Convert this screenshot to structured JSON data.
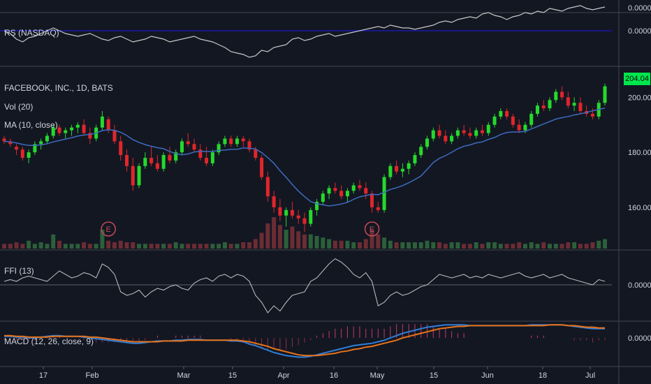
{
  "colors": {
    "background": "#131722",
    "grid": "#2a2e39",
    "up": "#26d92c",
    "down": "#e0262b",
    "ma": "#3d6bbf",
    "rs_line": "#c8c8c8",
    "rs_baseline": "#1a1aa8",
    "macd_line": "#2f7fd8",
    "signal_line": "#e8731a",
    "earnings": "#c24a5a",
    "price_tag": "#00e64d"
  },
  "panels": {
    "rs": {
      "label": "RS (NASDAQ)",
      "axis_labels": [
        "0.0000",
        "0.0000"
      ]
    },
    "price": {
      "title": "FACEBOOK, INC., 1D, BATS",
      "vol_label": "Vol (20)",
      "ma_label": "MA (10, close)",
      "axis_labels": [
        "200.00",
        "180.00",
        "160.00"
      ],
      "current_price": "204.04",
      "earnings_marker": "E"
    },
    "ffi": {
      "label": "FFI (13)",
      "axis_label": "0.0000"
    },
    "macd": {
      "label": "MACD (12, 26, close, 9)",
      "axis_label": "0.0000"
    }
  },
  "x_axis": {
    "labels": [
      "17",
      "Feb",
      "Mar",
      "15",
      "Apr",
      "16",
      "May",
      "15",
      "Jun",
      "18",
      "Jul"
    ]
  },
  "chart_data": {
    "type": "candlestick",
    "title": "FACEBOOK, INC., 1D, BATS",
    "y_axis": {
      "ylim": [
        145,
        210
      ],
      "ticks": [
        160,
        180,
        200
      ]
    },
    "x_axis_labels": [
      "17",
      "Feb",
      "Mar",
      "15",
      "Apr",
      "16",
      "May",
      "15",
      "Jun",
      "18",
      "Jul"
    ],
    "ohlc": [
      [
        185,
        186,
        183,
        184
      ],
      [
        184,
        185,
        182,
        183
      ],
      [
        182,
        183,
        179,
        181
      ],
      [
        181,
        182,
        177,
        178
      ],
      [
        178,
        181,
        176,
        180
      ],
      [
        180,
        184,
        179,
        183
      ],
      [
        183,
        185,
        181,
        184
      ],
      [
        184,
        187,
        183,
        186
      ],
      [
        186,
        190,
        185,
        189
      ],
      [
        189,
        190,
        186,
        187
      ],
      [
        187,
        189,
        185,
        188
      ],
      [
        188,
        190,
        186,
        189
      ],
      [
        189,
        191,
        187,
        190
      ],
      [
        190,
        192,
        186,
        187
      ],
      [
        187,
        189,
        183,
        185
      ],
      [
        185,
        190,
        184,
        189
      ],
      [
        189,
        195,
        188,
        193
      ],
      [
        192,
        193,
        187,
        188
      ],
      [
        188,
        190,
        183,
        184
      ],
      [
        184,
        186,
        177,
        179
      ],
      [
        179,
        181,
        173,
        175
      ],
      [
        175,
        178,
        166,
        168
      ],
      [
        168,
        176,
        167,
        175
      ],
      [
        175,
        180,
        174,
        178
      ],
      [
        178,
        182,
        175,
        176
      ],
      [
        176,
        179,
        173,
        174
      ],
      [
        174,
        180,
        173,
        179
      ],
      [
        179,
        182,
        176,
        177
      ],
      [
        177,
        181,
        176,
        180
      ],
      [
        180,
        185,
        179,
        184
      ],
      [
        184,
        187,
        182,
        183
      ],
      [
        183,
        185,
        180,
        181
      ],
      [
        181,
        183,
        177,
        178
      ],
      [
        178,
        182,
        175,
        176
      ],
      [
        176,
        181,
        175,
        180
      ],
      [
        180,
        184,
        179,
        183
      ],
      [
        183,
        186,
        182,
        185
      ],
      [
        185,
        186,
        182,
        183
      ],
      [
        183,
        186,
        182,
        185
      ],
      [
        185,
        186,
        182,
        184
      ],
      [
        184,
        185,
        180,
        181
      ],
      [
        181,
        182,
        177,
        178
      ],
      [
        178,
        179,
        170,
        171
      ],
      [
        171,
        173,
        162,
        164
      ],
      [
        164,
        166,
        158,
        160
      ],
      [
        160,
        163,
        155,
        157
      ],
      [
        157,
        160,
        153,
        159
      ],
      [
        159,
        162,
        156,
        157
      ],
      [
        157,
        159,
        154,
        156
      ],
      [
        156,
        158,
        151,
        154
      ],
      [
        154,
        160,
        153,
        159
      ],
      [
        159,
        163,
        157,
        162
      ],
      [
        162,
        166,
        161,
        165
      ],
      [
        165,
        168,
        163,
        167
      ],
      [
        167,
        169,
        165,
        166
      ],
      [
        166,
        168,
        163,
        164
      ],
      [
        164,
        167,
        162,
        166
      ],
      [
        166,
        169,
        165,
        168
      ],
      [
        168,
        170,
        166,
        167
      ],
      [
        167,
        169,
        163,
        165
      ],
      [
        165,
        166,
        158,
        160
      ],
      [
        160,
        162,
        158,
        159
      ],
      [
        159,
        172,
        158,
        171
      ],
      [
        171,
        176,
        170,
        175
      ],
      [
        175,
        177,
        172,
        173
      ],
      [
        173,
        176,
        171,
        174
      ],
      [
        174,
        177,
        172,
        176
      ],
      [
        176,
        180,
        175,
        179
      ],
      [
        179,
        183,
        178,
        182
      ],
      [
        182,
        186,
        181,
        185
      ],
      [
        185,
        189,
        184,
        188
      ],
      [
        188,
        190,
        185,
        186
      ],
      [
        186,
        188,
        183,
        184
      ],
      [
        184,
        187,
        183,
        186
      ],
      [
        186,
        189,
        185,
        188
      ],
      [
        188,
        190,
        186,
        187
      ],
      [
        187,
        189,
        185,
        186
      ],
      [
        186,
        189,
        185,
        188
      ],
      [
        188,
        190,
        186,
        187
      ],
      [
        187,
        191,
        186,
        190
      ],
      [
        190,
        194,
        189,
        193
      ],
      [
        193,
        196,
        192,
        195
      ],
      [
        195,
        196,
        192,
        193
      ],
      [
        193,
        194,
        189,
        190
      ],
      [
        190,
        192,
        187,
        188
      ],
      [
        188,
        191,
        187,
        190
      ],
      [
        190,
        195,
        189,
        194
      ],
      [
        194,
        198,
        193,
        197
      ],
      [
        197,
        199,
        195,
        196
      ],
      [
        196,
        200,
        195,
        199
      ],
      [
        199,
        203,
        198,
        202
      ],
      [
        202,
        204,
        199,
        200
      ],
      [
        200,
        202,
        196,
        197
      ],
      [
        197,
        200,
        195,
        198
      ],
      [
        198,
        200,
        194,
        195
      ],
      [
        195,
        197,
        193,
        194
      ],
      [
        194,
        196,
        192,
        193
      ],
      [
        193,
        199,
        192,
        198
      ],
      [
        198,
        205,
        197,
        204
      ]
    ],
    "ma10_close": [
      184,
      183.8,
      183.4,
      182.9,
      182.5,
      182.5,
      182.7,
      183.1,
      183.8,
      184.3,
      184.8,
      185.3,
      185.9,
      186.3,
      186.5,
      187,
      187.9,
      188.2,
      188,
      187.3,
      186.1,
      184.6,
      183.6,
      182.8,
      182.2,
      181.7,
      181.3,
      180.3,
      179.5,
      179.1,
      179.4,
      180.1,
      180.4,
      180.3,
      180.3,
      180.7,
      180.8,
      181.1,
      181.1,
      181.6,
      181.5,
      181.2,
      179.9,
      178.1,
      176,
      173.3,
      170.9,
      168.3,
      165.9,
      163.9,
      162.1,
      161.3,
      160.9,
      160.5,
      160.8,
      161.2,
      161.8,
      162.9,
      163.8,
      164.3,
      164.7,
      164.6,
      165.5,
      166.5,
      167.1,
      167.9,
      168.9,
      170.1,
      171.4,
      173.8,
      176.3,
      177.8,
      178.8,
      180,
      181.3,
      182.2,
      182.7,
      183.4,
      183.8,
      184.7,
      185.4,
      186.5,
      187.2,
      187.4,
      187.4,
      187.6,
      188.5,
      189.4,
      190.3,
      191.2,
      192.1,
      192.6,
      193,
      193.6,
      194,
      194.5,
      195.1,
      195.6,
      196.1
    ],
    "volume": [
      3,
      3,
      4,
      3,
      5,
      3,
      4,
      3,
      9,
      5,
      3,
      3,
      3,
      4,
      3,
      3,
      12,
      5,
      4,
      5,
      4,
      4,
      3,
      3,
      3,
      3,
      3,
      3,
      4,
      3,
      3,
      3,
      3,
      3,
      3,
      3,
      4,
      3,
      3,
      4,
      4,
      6,
      10,
      16,
      20,
      15,
      12,
      14,
      11,
      9,
      9,
      8,
      7,
      6,
      5,
      5,
      5,
      4,
      4,
      6,
      12,
      9,
      7,
      5,
      4,
      4,
      4,
      4,
      4,
      5,
      4,
      4,
      3,
      4,
      4,
      3,
      3,
      4,
      3,
      4,
      4,
      3,
      3,
      3,
      4,
      3,
      4,
      3,
      4,
      3,
      3,
      3,
      4,
      4,
      3,
      3,
      4,
      5,
      6
    ],
    "earnings_at": [
      17,
      60
    ],
    "ffi": [
      0.1,
      0.15,
      0.1,
      0.2,
      0.25,
      0.2,
      0.15,
      0.1,
      0.25,
      0.4,
      0.3,
      0.2,
      0.25,
      0.35,
      0.3,
      0.2,
      0.6,
      0.5,
      0.3,
      -0.2,
      -0.3,
      -0.25,
      -0.15,
      -0.35,
      -0.2,
      -0.1,
      -0.15,
      -0.05,
      0.0,
      -0.1,
      -0.15,
      0.05,
      0.15,
      0.2,
      0.1,
      0.25,
      0.3,
      0.2,
      0.3,
      0.25,
      0.1,
      -0.3,
      -0.5,
      -0.8,
      -0.6,
      -0.75,
      -0.5,
      -0.3,
      -0.25,
      -0.2,
      0.1,
      0.2,
      0.4,
      0.6,
      0.75,
      0.65,
      0.5,
      0.3,
      0.2,
      0.35,
      0.1,
      -0.6,
      -0.5,
      -0.3,
      -0.2,
      -0.3,
      -0.25,
      -0.15,
      -0.05,
      0.0,
      0.15,
      0.3,
      0.25,
      0.2,
      0.25,
      0.3,
      0.2,
      0.25,
      0.2,
      0.3,
      0.25,
      0.2,
      0.25,
      0.3,
      0.35,
      0.25,
      0.2,
      0.25,
      0.3,
      0.2,
      0.25,
      0.3,
      0.2,
      0.15,
      0.1,
      0.05,
      0.0,
      0.15,
      0.1
    ],
    "rs": [
      0.0,
      -0.1,
      -0.3,
      -0.4,
      -0.25,
      -0.2,
      -0.1,
      0.0,
      0.1,
      0.0,
      -0.1,
      -0.15,
      -0.2,
      -0.15,
      -0.1,
      -0.2,
      -0.3,
      -0.35,
      -0.25,
      -0.2,
      -0.3,
      -0.4,
      -0.35,
      -0.3,
      -0.2,
      -0.25,
      -0.3,
      -0.4,
      -0.35,
      -0.3,
      -0.25,
      -0.2,
      -0.3,
      -0.35,
      -0.4,
      -0.5,
      -0.6,
      -0.75,
      -0.8,
      -0.85,
      -0.95,
      -0.9,
      -0.7,
      -0.75,
      -0.6,
      -0.55,
      -0.5,
      -0.3,
      -0.25,
      -0.35,
      -0.3,
      -0.2,
      -0.15,
      -0.1,
      -0.2,
      -0.15,
      -0.1,
      -0.05,
      0.0,
      0.05,
      0.1,
      0.15,
      0.1,
      0.2,
      0.15,
      0.1,
      0.1,
      0.05,
      0.1,
      0.15,
      0.2,
      0.3,
      0.35,
      0.3,
      0.4,
      0.45,
      0.5,
      0.45,
      0.6,
      0.65,
      0.55,
      0.5,
      0.4,
      0.5,
      0.55,
      0.65,
      0.6,
      0.7,
      0.65,
      0.8,
      0.75,
      0.7,
      0.8,
      0.85,
      0.9,
      0.8,
      0.75,
      0.8,
      0.85
    ],
    "macd": [
      0.02,
      0.02,
      0.01,
      0.01,
      0.0,
      0.0,
      0.01,
      0.02,
      0.03,
      0.03,
      0.02,
      0.02,
      0.02,
      0.01,
      0.0,
      -0.01,
      -0.02,
      -0.03,
      -0.04,
      -0.05,
      -0.06,
      -0.07,
      -0.07,
      -0.06,
      -0.05,
      -0.04,
      -0.04,
      -0.04,
      -0.03,
      -0.03,
      -0.02,
      -0.02,
      -0.02,
      -0.03,
      -0.03,
      -0.03,
      -0.03,
      -0.04,
      -0.04,
      -0.05,
      -0.08,
      -0.1,
      -0.13,
      -0.16,
      -0.19,
      -0.21,
      -0.23,
      -0.24,
      -0.25,
      -0.25,
      -0.24,
      -0.22,
      -0.2,
      -0.18,
      -0.16,
      -0.14,
      -0.12,
      -0.1,
      -0.09,
      -0.08,
      -0.07,
      -0.05,
      -0.03,
      0.0,
      0.03,
      0.06,
      0.08,
      0.1,
      0.12,
      0.14,
      0.15,
      0.16,
      0.17,
      0.17,
      0.17,
      0.17,
      0.16,
      0.16,
      0.16,
      0.16,
      0.16,
      0.16,
      0.16,
      0.16,
      0.16,
      0.16,
      0.17,
      0.17,
      0.17,
      0.17,
      0.17,
      0.17,
      0.16,
      0.15,
      0.14,
      0.13,
      0.12,
      0.12,
      0.12
    ],
    "signal": [
      0.03,
      0.03,
      0.02,
      0.02,
      0.01,
      0.01,
      0.01,
      0.01,
      0.02,
      0.02,
      0.02,
      0.02,
      0.02,
      0.02,
      0.01,
      0.01,
      0.0,
      -0.01,
      -0.02,
      -0.03,
      -0.04,
      -0.05,
      -0.05,
      -0.05,
      -0.05,
      -0.05,
      -0.04,
      -0.04,
      -0.04,
      -0.04,
      -0.03,
      -0.03,
      -0.03,
      -0.03,
      -0.03,
      -0.03,
      -0.03,
      -0.03,
      -0.03,
      -0.04,
      -0.05,
      -0.07,
      -0.09,
      -0.11,
      -0.14,
      -0.16,
      -0.18,
      -0.2,
      -0.22,
      -0.23,
      -0.23,
      -0.23,
      -0.22,
      -0.21,
      -0.2,
      -0.18,
      -0.17,
      -0.15,
      -0.14,
      -0.12,
      -0.11,
      -0.09,
      -0.07,
      -0.05,
      -0.03,
      0.0,
      0.02,
      0.04,
      0.06,
      0.08,
      0.1,
      0.12,
      0.13,
      0.14,
      0.15,
      0.15,
      0.16,
      0.16,
      0.16,
      0.16,
      0.16,
      0.16,
      0.16,
      0.16,
      0.16,
      0.16,
      0.16,
      0.16,
      0.16,
      0.17,
      0.17,
      0.17,
      0.16,
      0.16,
      0.15,
      0.14,
      0.14,
      0.13,
      0.13
    ]
  }
}
